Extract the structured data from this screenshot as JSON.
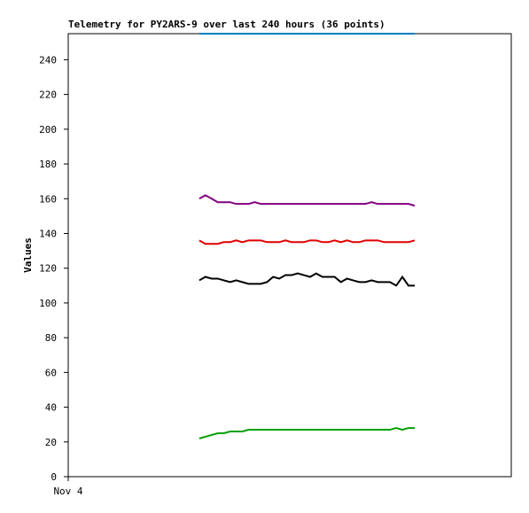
{
  "chart_data": {
    "type": "line",
    "title": "Telemetry for PY2ARS-9 over last 240 hours (36 points)",
    "y_label": "Values",
    "x": [
      71,
      74.3,
      77.7,
      81,
      84.3,
      87.7,
      91,
      94.3,
      97.7,
      101,
      104.3,
      107.7,
      111,
      114.3,
      117.7,
      121,
      124.3,
      127.7,
      131,
      134.3,
      137.7,
      141,
      144.3,
      147.7,
      151,
      154.3,
      157.7,
      161,
      164.3,
      167.7,
      171,
      174.3,
      177.7,
      181,
      184.3,
      187.7
    ],
    "xlim": [
      0,
      240
    ],
    "xticks": [
      {
        "value": 0,
        "label": "Nov 4"
      }
    ],
    "ylim": [
      0,
      255
    ],
    "yticks": [
      0,
      20,
      40,
      60,
      80,
      100,
      120,
      140,
      160,
      180,
      200,
      220,
      240
    ],
    "grid": false,
    "series": [
      {
        "color": "#0080c0",
        "values": [
          255,
          255,
          255,
          255,
          255,
          255,
          255,
          255,
          255,
          255,
          255,
          255,
          255,
          255,
          255,
          255,
          255,
          255,
          255,
          255,
          255,
          255,
          255,
          255,
          255,
          255,
          255,
          255,
          255,
          255,
          255,
          255,
          255,
          255,
          255,
          255
        ]
      },
      {
        "color": "#800080",
        "values": [
          160,
          162,
          160,
          158,
          158,
          158,
          157,
          157,
          157,
          158,
          157,
          157,
          157,
          157,
          157,
          157,
          157,
          157,
          157,
          157,
          157,
          157,
          157,
          157,
          157,
          157,
          157,
          157,
          158,
          157,
          157,
          157,
          157,
          157,
          157,
          156
        ]
      },
      {
        "color": "#e00000",
        "values": [
          136,
          134,
          134,
          134,
          135,
          135,
          136,
          135,
          136,
          136,
          136,
          135,
          135,
          135,
          136,
          135,
          135,
          135,
          136,
          136,
          135,
          135,
          136,
          135,
          136,
          135,
          135,
          136,
          136,
          136,
          135,
          135,
          135,
          135,
          135,
          136
        ]
      },
      {
        "color": "#000000",
        "values": [
          113,
          115,
          114,
          114,
          113,
          112,
          113,
          112,
          111,
          111,
          111,
          112,
          115,
          114,
          116,
          116,
          117,
          116,
          115,
          117,
          115,
          115,
          115,
          112,
          114,
          113,
          112,
          112,
          113,
          112,
          112,
          112,
          110,
          115,
          110,
          110
        ]
      },
      {
        "color": "#00a000",
        "values": [
          22,
          23,
          24,
          25,
          25,
          26,
          26,
          26,
          27,
          27,
          27,
          27,
          27,
          27,
          27,
          27,
          27,
          27,
          27,
          27,
          27,
          27,
          27,
          27,
          27,
          27,
          27,
          27,
          27,
          27,
          27,
          27,
          28,
          27,
          28,
          28
        ]
      }
    ]
  }
}
